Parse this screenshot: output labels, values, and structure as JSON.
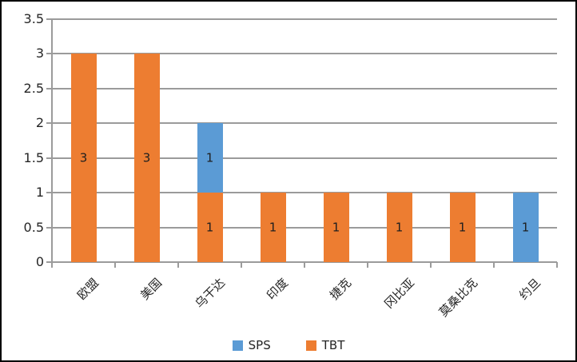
{
  "chart_data": {
    "type": "bar",
    "stacked": true,
    "title": "",
    "categories": [
      "欧盟",
      "美国",
      "乌干达",
      "印度",
      "捷克",
      "冈比亚",
      "莫桑比克",
      "约旦"
    ],
    "series": [
      {
        "name": "SPS",
        "color": "#5B9BD5",
        "values": [
          0,
          0,
          1,
          0,
          0,
          0,
          0,
          1
        ]
      },
      {
        "name": "TBT",
        "color": "#ED7D31",
        "values": [
          3,
          3,
          1,
          1,
          1,
          1,
          1,
          0
        ]
      }
    ],
    "stack_order_bottom_to_top": [
      "TBT",
      "SPS"
    ],
    "ylim": [
      0,
      3.5
    ],
    "yticks": [
      0,
      0.5,
      1,
      1.5,
      2,
      2.5,
      3,
      3.5
    ],
    "ytick_labels": [
      "0",
      "0.5",
      "1",
      "1.5",
      "2",
      "2.5",
      "3",
      "3.5"
    ],
    "grid": true,
    "data_labels": true,
    "legend_position": "bottom",
    "legend_items": [
      {
        "label": "SPS",
        "color": "#5B9BD5"
      },
      {
        "label": "TBT",
        "color": "#ED7D31"
      }
    ],
    "colors": {
      "grid": "#9B9B9B",
      "axis": "#9B9B9B",
      "text": "#262626",
      "background": "#FFFFFF",
      "frame_border": "#000000"
    }
  }
}
